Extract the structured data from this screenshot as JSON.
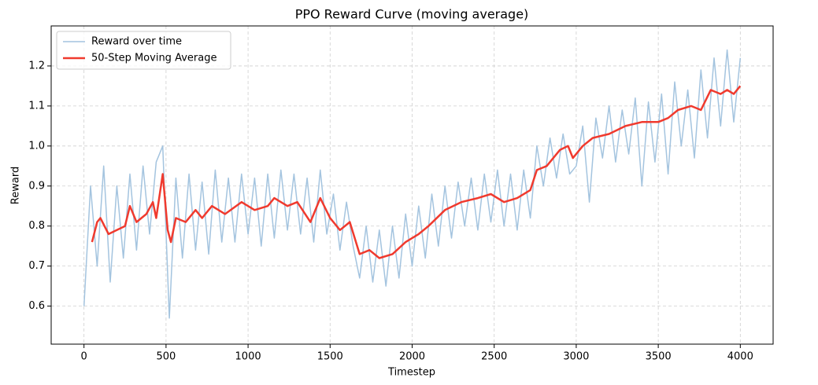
{
  "chart_data": {
    "type": "line",
    "title": "PPO Reward Curve (moving average)",
    "x_label": "Timestep",
    "y_label": "Reward",
    "xlim": [
      -200,
      4200
    ],
    "xticks": [
      0,
      500,
      1000,
      1500,
      2000,
      2500,
      3000,
      3500,
      4000
    ],
    "ylim": [
      0.505,
      1.3
    ],
    "yticks": [
      0.6,
      0.7,
      0.8,
      0.9,
      {
        "value": 1,
        "label": "1.0"
      },
      1.1,
      1.2
    ],
    "grid": true,
    "legend": "upper left",
    "series": [
      {
        "name": "Reward over time",
        "color": "#a4c4df",
        "width": 1.5,
        "x": [
          0,
          40,
          80,
          120,
          160,
          200,
          240,
          280,
          320,
          360,
          400,
          440,
          480,
          520,
          560,
          600,
          640,
          680,
          720,
          760,
          800,
          840,
          880,
          920,
          960,
          1000,
          1040,
          1080,
          1120,
          1160,
          1200,
          1240,
          1280,
          1320,
          1360,
          1400,
          1440,
          1480,
          1520,
          1560,
          1600,
          1640,
          1680,
          1720,
          1760,
          1800,
          1840,
          1880,
          1920,
          1960,
          2000,
          2040,
          2080,
          2120,
          2160,
          2200,
          2240,
          2280,
          2320,
          2360,
          2400,
          2440,
          2480,
          2520,
          2560,
          2600,
          2640,
          2680,
          2720,
          2760,
          2800,
          2840,
          2880,
          2920,
          2960,
          3000,
          3040,
          3080,
          3120,
          3160,
          3200,
          3240,
          3280,
          3320,
          3360,
          3400,
          3440,
          3480,
          3520,
          3560,
          3600,
          3640,
          3680,
          3720,
          3760,
          3800,
          3840,
          3880,
          3920,
          3960,
          4000
        ],
        "values": [
          0.6,
          0.9,
          0.7,
          0.95,
          0.66,
          0.9,
          0.72,
          0.93,
          0.74,
          0.95,
          0.78,
          0.96,
          1.0,
          0.57,
          0.92,
          0.72,
          0.93,
          0.74,
          0.91,
          0.73,
          0.94,
          0.76,
          0.92,
          0.76,
          0.93,
          0.78,
          0.92,
          0.75,
          0.93,
          0.77,
          0.94,
          0.79,
          0.93,
          0.78,
          0.92,
          0.76,
          0.94,
          0.78,
          0.88,
          0.74,
          0.86,
          0.75,
          0.67,
          0.8,
          0.66,
          0.79,
          0.65,
          0.8,
          0.67,
          0.83,
          0.7,
          0.85,
          0.72,
          0.88,
          0.75,
          0.9,
          0.77,
          0.91,
          0.8,
          0.92,
          0.79,
          0.93,
          0.81,
          0.94,
          0.8,
          0.93,
          0.79,
          0.94,
          0.82,
          1.0,
          0.9,
          1.02,
          0.92,
          1.03,
          0.93,
          0.95,
          1.05,
          0.86,
          1.07,
          0.97,
          1.1,
          0.96,
          1.09,
          0.98,
          1.12,
          0.9,
          1.11,
          0.96,
          1.13,
          0.93,
          1.16,
          1.0,
          1.14,
          0.97,
          1.19,
          1.02,
          1.22,
          1.05,
          1.24,
          1.06,
          1.22
        ]
      },
      {
        "name": "50-Step Moving Average",
        "color": "#f03a2e",
        "width": 2.5,
        "x": [
          49,
          80,
          100,
          150,
          200,
          250,
          280,
          320,
          380,
          420,
          440,
          480,
          510,
          530,
          560,
          620,
          680,
          720,
          780,
          860,
          960,
          1040,
          1120,
          1160,
          1240,
          1300,
          1380,
          1440,
          1500,
          1560,
          1620,
          1680,
          1740,
          1800,
          1880,
          1960,
          2040,
          2100,
          2200,
          2300,
          2400,
          2480,
          2560,
          2640,
          2720,
          2760,
          2820,
          2900,
          2950,
          2980,
          3040,
          3100,
          3200,
          3300,
          3400,
          3500,
          3560,
          3620,
          3700,
          3760,
          3820,
          3880,
          3920,
          3960,
          4000
        ],
        "values": [
          0.76,
          0.81,
          0.82,
          0.78,
          0.79,
          0.8,
          0.85,
          0.81,
          0.83,
          0.86,
          0.82,
          0.93,
          0.79,
          0.76,
          0.82,
          0.81,
          0.84,
          0.82,
          0.85,
          0.83,
          0.86,
          0.84,
          0.85,
          0.87,
          0.85,
          0.86,
          0.81,
          0.87,
          0.82,
          0.79,
          0.81,
          0.73,
          0.74,
          0.72,
          0.73,
          0.76,
          0.78,
          0.8,
          0.84,
          0.86,
          0.87,
          0.88,
          0.86,
          0.87,
          0.89,
          0.94,
          0.95,
          0.99,
          1.0,
          0.97,
          1.0,
          1.02,
          1.03,
          1.05,
          1.06,
          1.06,
          1.07,
          1.09,
          1.1,
          1.09,
          1.14,
          1.13,
          1.14,
          1.13,
          1.15
        ]
      }
    ]
  }
}
